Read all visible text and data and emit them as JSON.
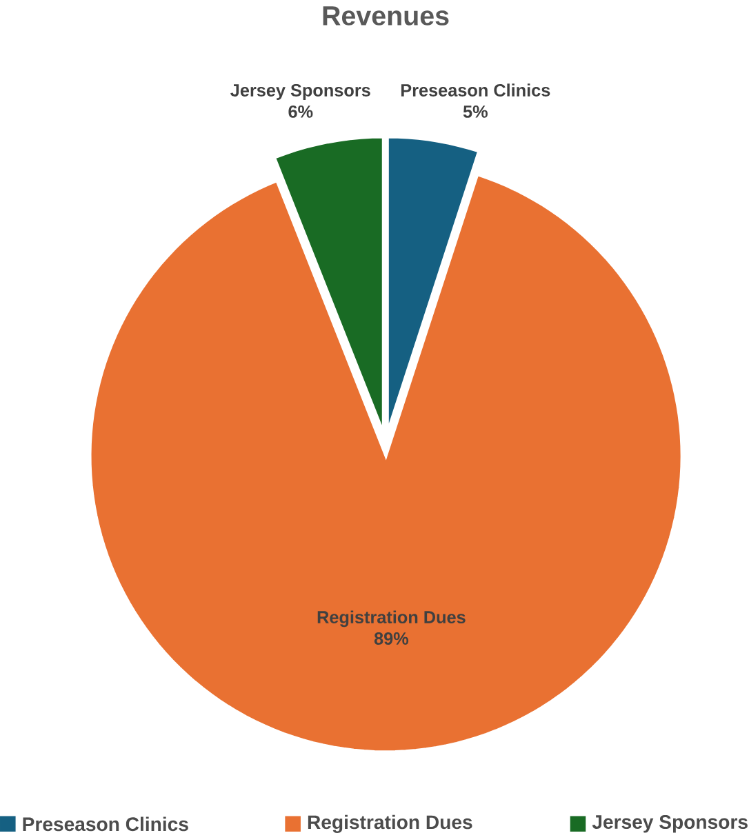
{
  "chart_data": {
    "type": "pie",
    "title": "Revenues",
    "categories": [
      "Preseason Clinics",
      "Registration Dues",
      "Jersey Sponsors"
    ],
    "values": [
      5,
      89,
      6
    ],
    "value_labels": [
      "5%",
      "89%",
      "6%"
    ],
    "colors": [
      "#156082",
      "#e97132",
      "#196b24"
    ],
    "legend": "bottom"
  }
}
